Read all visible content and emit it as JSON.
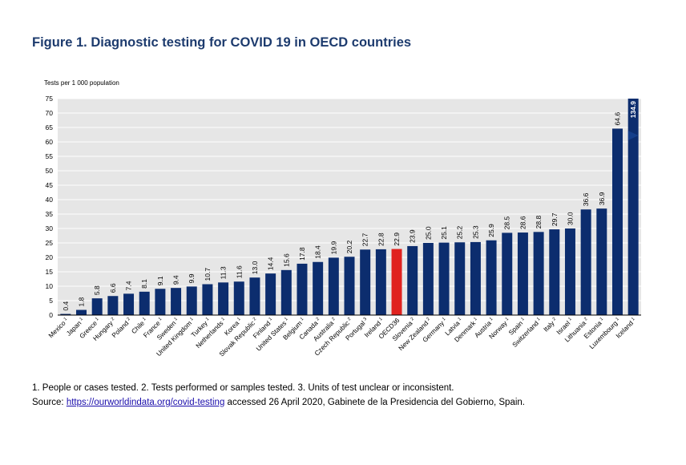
{
  "colors": {
    "bar": "#0c2d6e",
    "highlight": "#e0221f",
    "plot_bg": "#e6e6e6",
    "grid": "#ffffff",
    "title": "#1d3b6e"
  },
  "figure": {
    "title": "Figure 1. Diagnostic testing for COVID 19 in OECD countries"
  },
  "chart_data": {
    "type": "bar",
    "ylabel": "Tests per 1 000 population",
    "ylim": [
      0,
      75
    ],
    "yticks": [
      0,
      5,
      10,
      15,
      20,
      25,
      30,
      35,
      40,
      45,
      50,
      55,
      60,
      65,
      70,
      75
    ],
    "grid": true,
    "categories": [
      "Mexico",
      "Japan",
      "Greece",
      "Hungary",
      "Poland",
      "Chile",
      "France",
      "Sweden",
      "United Kingdom",
      "Turkey",
      "Netherlands",
      "Korea",
      "Slovak Republic",
      "Finland",
      "United States",
      "Belgium",
      "Canada",
      "Australia",
      "Czech Republic",
      "Portugal",
      "Ireland",
      "OECD36",
      "Slovenia",
      "New Zealand",
      "Germany",
      "Latvia",
      "Denmark",
      "Austria",
      "Norway",
      "Spain",
      "Switzerland",
      "Italy",
      "Israel",
      "Lithuania",
      "Estonia",
      "Luxembourg",
      "Iceland"
    ],
    "footnote_marks": [
      "1",
      "1",
      "1",
      "2",
      "2",
      "1",
      "1",
      "1",
      "1",
      "1",
      "1",
      "1",
      "2",
      "1",
      "1",
      "1",
      "2",
      "2",
      "2",
      "3",
      "1",
      "",
      "2",
      "2",
      "1",
      "1",
      "1",
      "1",
      "1",
      "1",
      "1",
      "2",
      "1",
      "2",
      "1",
      "1",
      "1"
    ],
    "values": [
      0.4,
      1.8,
      5.8,
      6.6,
      7.4,
      8.1,
      9.1,
      9.4,
      9.9,
      10.7,
      11.3,
      11.6,
      13.0,
      14.4,
      15.6,
      17.8,
      18.4,
      19.9,
      20.2,
      22.7,
      22.8,
      22.9,
      23.9,
      25.0,
      25.1,
      25.2,
      25.3,
      25.9,
      28.5,
      28.6,
      28.8,
      29.7,
      30.0,
      36.6,
      36.9,
      64.6,
      134.9
    ],
    "value_labels": [
      "0.4",
      "1.8",
      "5.8",
      "6.6",
      "7.4",
      "8.1",
      "9.1",
      "9.4",
      "9.9",
      "10.7",
      "11.3",
      "11.6",
      "13.0",
      "14.4",
      "15.6",
      "17.8",
      "18.4",
      "19.9",
      "20.2",
      "22.7",
      "22.8",
      "22.9",
      "23.9",
      "25.0",
      "25.1",
      "25.2",
      "25.3",
      "25.9",
      "28.5",
      "28.6",
      "28.8",
      "29.7",
      "30.0",
      "36.6",
      "36.9",
      "64.6",
      "134.9"
    ],
    "highlight": "OECD36"
  },
  "notes": {
    "footnotes": "1. People or cases tested. 2. Tests performed or samples tested. 3. Units of test unclear or inconsistent.",
    "source_prefix": "Source: ",
    "source_link": "https://ourworldindata.org/covid-testing",
    "source_suffix": " accessed 26 April 2020, Gabinete de la Presidencia del Gobierno, Spain."
  }
}
